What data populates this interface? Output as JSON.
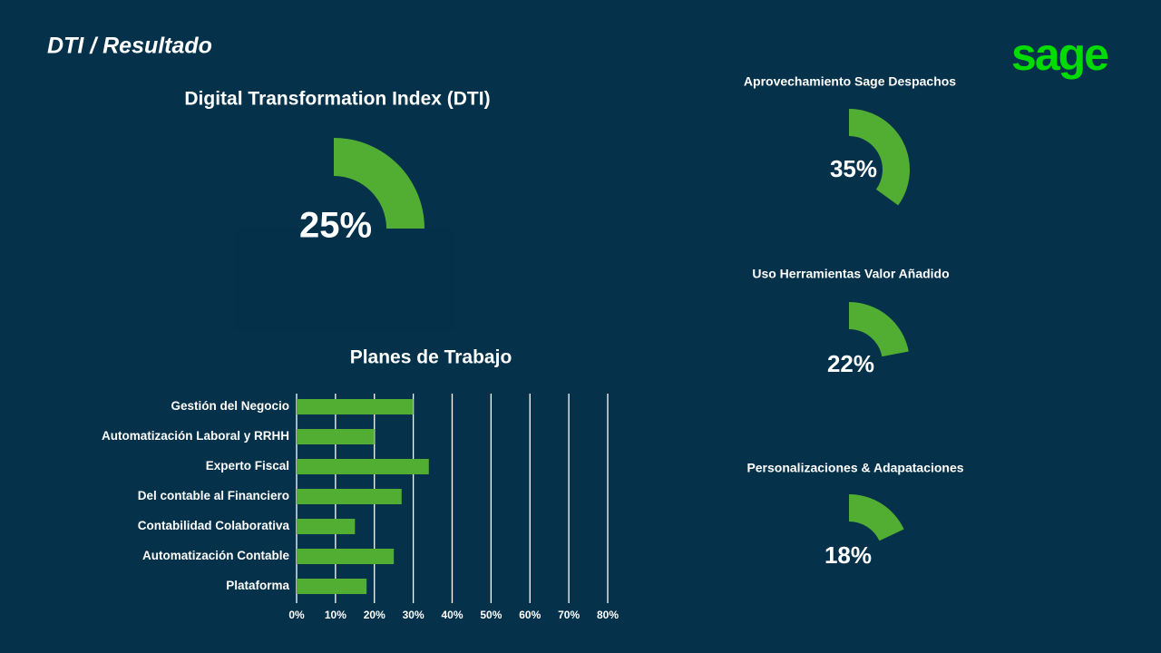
{
  "title": "DTI / Resultado",
  "logo": "sage",
  "chart_data": [
    {
      "type": "donut",
      "title": "Digital Transformation Index (DTI)",
      "values": [
        25
      ],
      "value_labels": [
        "25%"
      ],
      "color": "#52ae32"
    },
    {
      "type": "bar",
      "orientation": "horizontal",
      "title": "Planes de Trabajo",
      "categories": [
        "Gestión del Negocio",
        "Automatización Laboral y RRHH",
        "Experto Fiscal",
        "Del contable al Financiero",
        "Contabilidad Colaborativa",
        "Automatización Contable",
        "Plataforma"
      ],
      "values": [
        30,
        20,
        34,
        27,
        15,
        25,
        18
      ],
      "color": "#52ae32",
      "xlim": [
        0,
        80
      ],
      "xticks": [
        {
          "value": 0,
          "label": "0%"
        },
        {
          "value": 10,
          "label": "10%"
        },
        {
          "value": 20,
          "label": "20%"
        },
        {
          "value": 30,
          "label": "30%"
        },
        {
          "value": 40,
          "label": "40%"
        },
        {
          "value": 50,
          "label": "50%"
        },
        {
          "value": 60,
          "label": "60%"
        },
        {
          "value": 70,
          "label": "70%"
        },
        {
          "value": 80,
          "label": "80%"
        }
      ],
      "grid": true
    },
    {
      "type": "donut",
      "title": "Aprovechamiento Sage Despachos",
      "values": [
        35
      ],
      "value_labels": [
        "35%"
      ],
      "color": "#52ae32"
    },
    {
      "type": "donut",
      "title": "Uso Herramientas Valor Añadido",
      "values": [
        22
      ],
      "value_labels": [
        "22%"
      ],
      "color": "#52ae32"
    },
    {
      "type": "donut",
      "title": "Personalizaciones & Adapataciones",
      "values": [
        18
      ],
      "value_labels": [
        "18%"
      ],
      "color": "#52ae32"
    }
  ]
}
